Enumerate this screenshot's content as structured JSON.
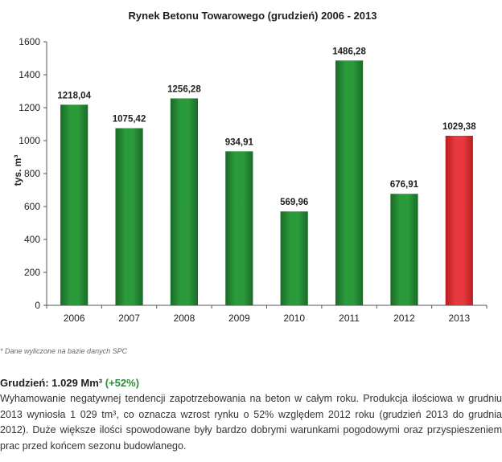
{
  "chart_data": {
    "type": "bar",
    "title": "Rynek Betonu  Towarowego (grudzień) 2006 - 2013",
    "xlabel": "",
    "ylabel": "tys. m³",
    "categories": [
      "2006",
      "2007",
      "2008",
      "2009",
      "2010",
      "2011",
      "2012",
      "2013"
    ],
    "values": [
      1218.04,
      1075.42,
      1256.28,
      934.91,
      569.96,
      1486.28,
      676.91,
      1029.38
    ],
    "value_labels": [
      "1218,04",
      "1075,42",
      "1256,28",
      "934,91",
      "569,96",
      "1486,28",
      "676,91",
      "1029,38"
    ],
    "ylim": [
      0,
      1600
    ],
    "yticks": [
      0,
      200,
      400,
      600,
      800,
      1000,
      1200,
      1400,
      1600
    ],
    "grid": false,
    "bar_colors": [
      "#1f7a2e",
      "#1f7a2e",
      "#1f7a2e",
      "#1f7a2e",
      "#1f7a2e",
      "#1f7a2e",
      "#1f7a2e",
      "#d82a2f"
    ]
  },
  "footnote": "* Dane wyliczone na bazie danych SPC",
  "headline": {
    "label": "Grudzień: 1.029 Mm³",
    "change": "(+52%)"
  },
  "paragraph": "Wyhamowanie negatywnej tendencji zapotrzebowania na beton w całym roku. Produkcja ilościowa w grudniu 2013 wyniosła 1 029  tm³, co oznacza wzrost rynku o 52% względem 2012 roku (grudzień 2013 do grudnia 2012). Duże większe ilości spowodowane były bardzo dobrymi warunkami pogodowymi oraz przyspieszeniem prac przed końcem sezonu budowlanego."
}
